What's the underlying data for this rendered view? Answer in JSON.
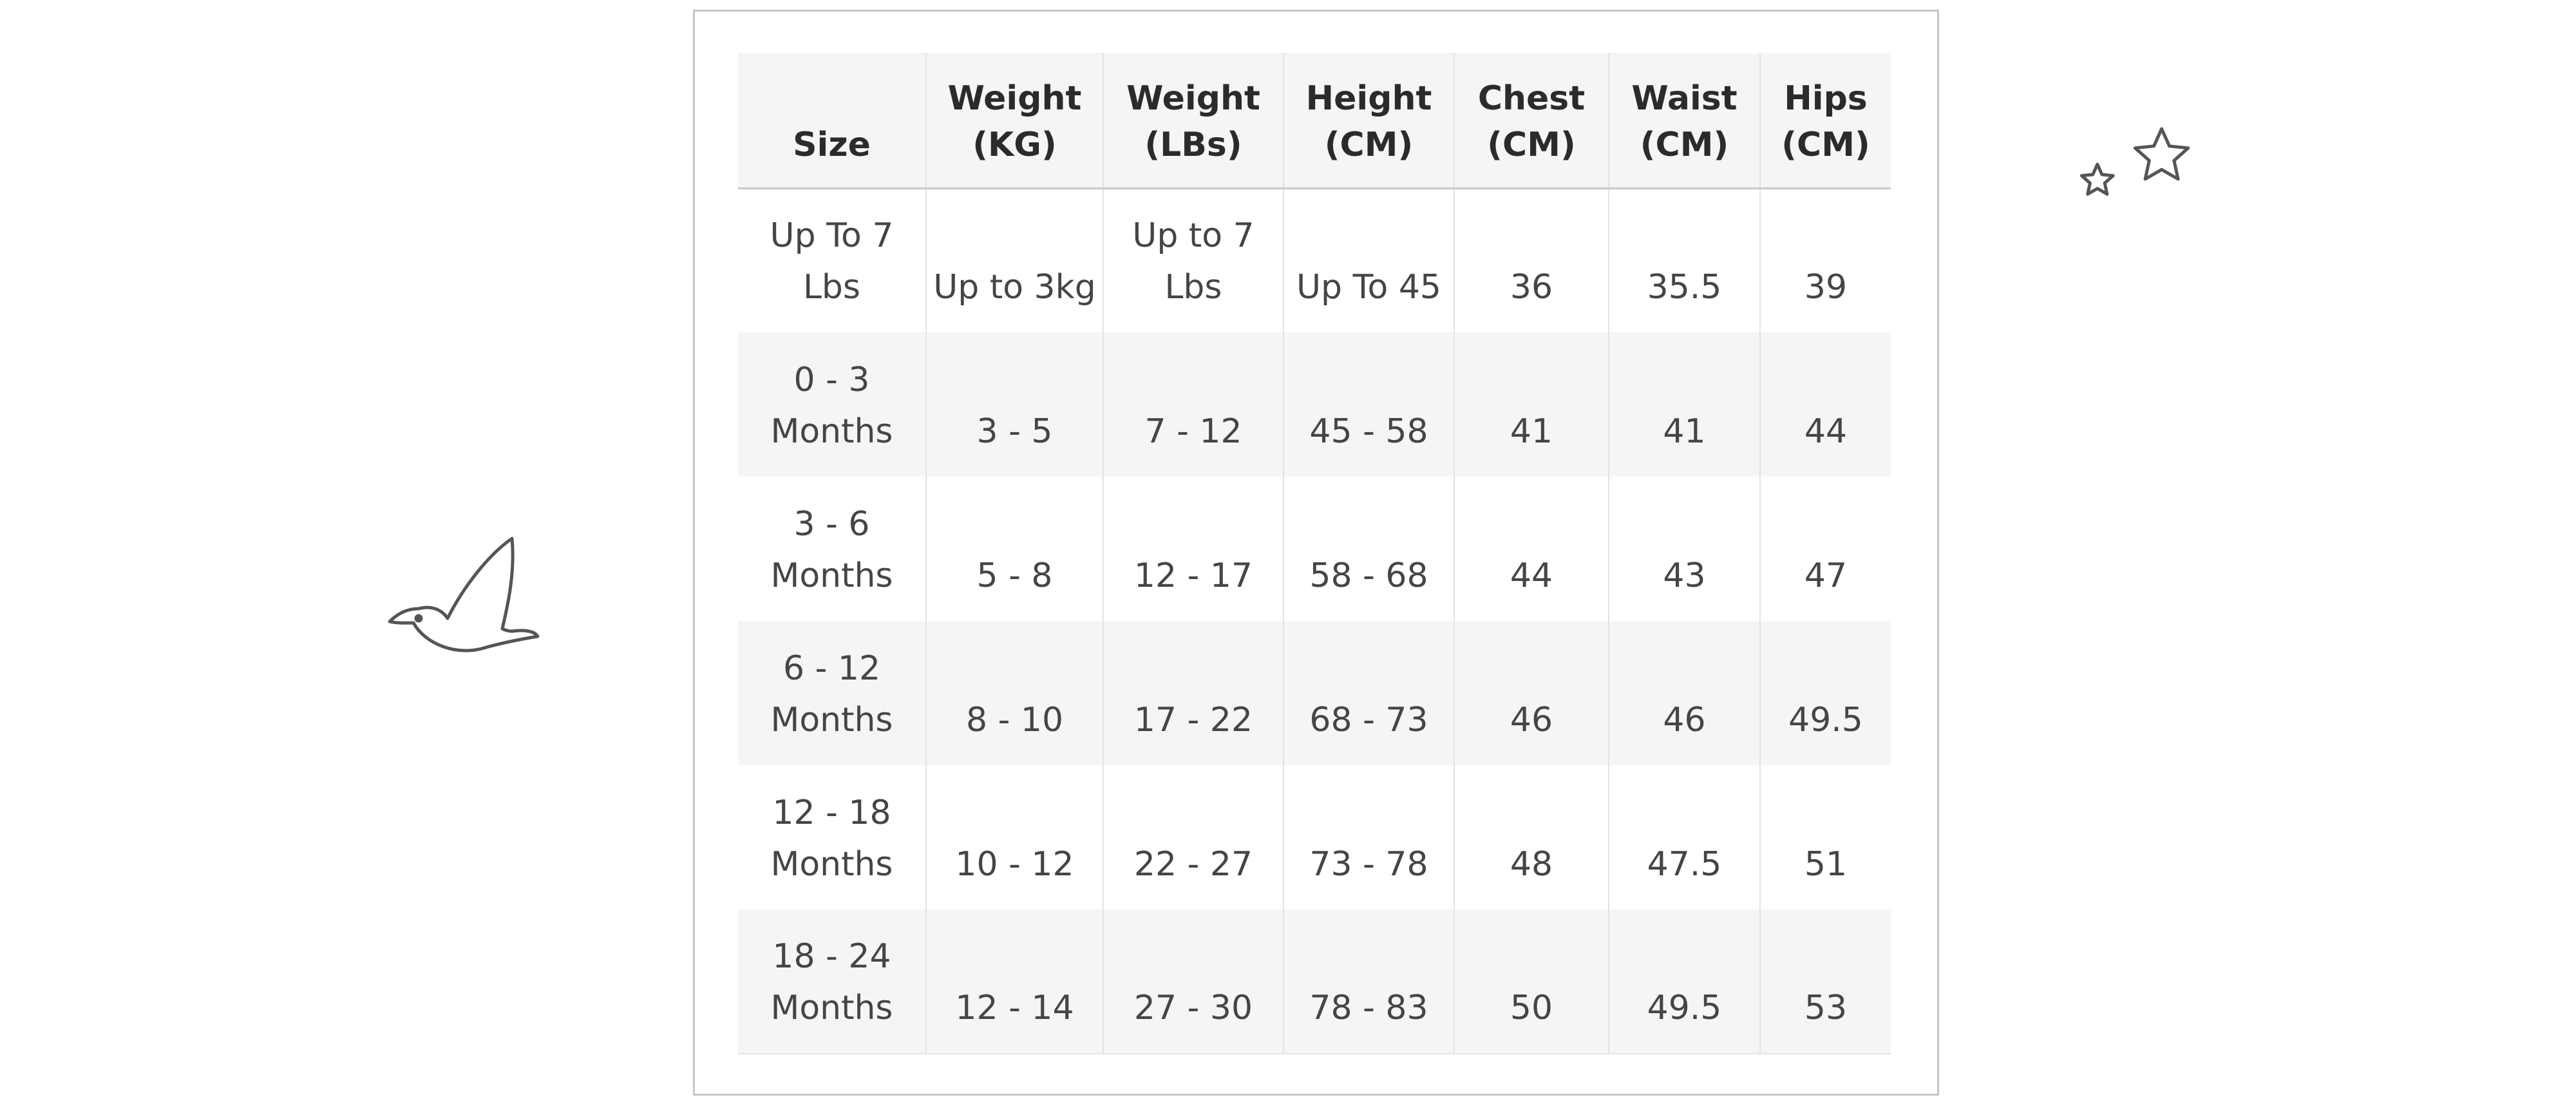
{
  "size_chart": {
    "headers": [
      "Size",
      "Weight (KG)",
      "Weight (LBs)",
      "Height (CM)",
      "Chest (CM)",
      "Waist (CM)",
      "Hips (CM)"
    ],
    "rows": [
      [
        "Up To 7 Lbs",
        "Up to 3kg",
        "Up to 7 Lbs",
        "Up To 45",
        "36",
        "35.5",
        "39"
      ],
      [
        "0 - 3 Months",
        "3 - 5",
        "7 - 12",
        "45 - 58",
        "41",
        "41",
        "44"
      ],
      [
        "3 - 6 Months",
        "5 - 8",
        "12 - 17",
        "58 - 68",
        "44",
        "43",
        "47"
      ],
      [
        "6 - 12 Months",
        "8 - 10",
        "17 - 22",
        "68 - 73",
        "46",
        "46",
        "49.5"
      ],
      [
        "12 - 18 Months",
        "10 - 12",
        "22 - 27",
        "73 - 78",
        "48",
        "47.5",
        "51"
      ],
      [
        "18 - 24 Months",
        "12 - 14",
        "27 - 30",
        "78 - 83",
        "50",
        "49.5",
        "53"
      ]
    ]
  },
  "decorations": {
    "left_icon": "bird-icon",
    "right_icon": "stars-icon",
    "stroke_color": "#555555"
  },
  "colors": {
    "header_background": "#f5f5f5",
    "striped_row_background": "#f5f5f5",
    "frame_border": "#c6c6c6",
    "text": "#454545"
  }
}
